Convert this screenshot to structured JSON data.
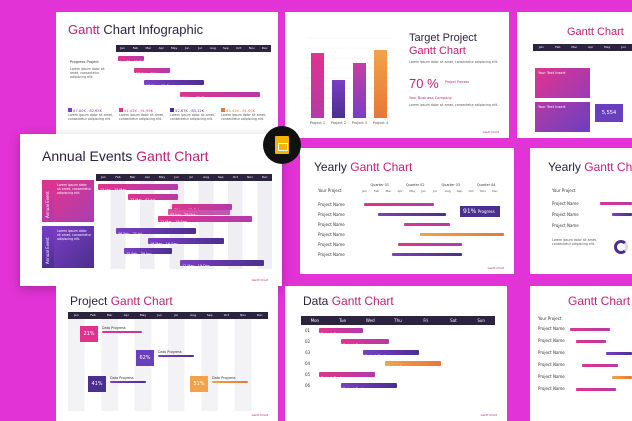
{
  "slides": {
    "s1": {
      "title_a": "Gantt",
      "title_b": " Chart Infographic",
      "progress_label": "Progress Project",
      "bars": [
        "Jan 01 - 15 Feb",
        "28 Feb - 01 Jun",
        "07 Mar - 15 Sep",
        "01 Jun - 31 Dec"
      ],
      "stats": [
        "67.80K - 82,65K",
        "51.43K - 91.99K",
        "52.67K - 83.12K",
        "45.41K - 81.60K"
      ]
    },
    "s2": {
      "title_a": "Target Project",
      "title_b": "Gantt Chart",
      "pct": "70 %",
      "pct_label": "Project Process",
      "company": "Your Business Company",
      "chart_data": {
        "type": "bar",
        "categories": [
          "Project 1",
          "Project 2",
          "Project 3",
          "Project 4"
        ],
        "values": [
          65,
          38,
          55,
          68
        ],
        "ylim": [
          0,
          80
        ]
      }
    },
    "s3": {
      "title_a": "Gantt Chart",
      "box1": "Your Text Insert",
      "box2": "Your Text Insert",
      "value": "5,554"
    },
    "s4": {
      "title_a": "Annual Events ",
      "title_b": "Gantt Chart",
      "side1": "Annual Event",
      "side2": "Annual Event",
      "bars": [
        "12 Jan - 15 May",
        "27 Mar - 01 Jul",
        "09 Jun - 19 Oct",
        "05 Jun - 29 Oct",
        "12 Mar - 15 Sep",
        "06 Feb - 21 Jul",
        "19 May - 16 Sep",
        "25 Feb - 09 Jun",
        "12 May - 19 Dec"
      ]
    },
    "s5": {
      "title_a": "Yearly ",
      "title_b": "Gantt Chart",
      "your_project": "Your Project",
      "quarters": [
        "Quarter 01",
        "Quarter 02",
        "Quarter 03",
        "Quarter 04"
      ],
      "row": "Project Name",
      "progress_value": "91%",
      "progress_label": "Progress"
    },
    "s6": {
      "title_a": "Yearly ",
      "title_b": "Gantt Chart",
      "your_project": "Your Project",
      "row": "Project Name"
    },
    "s7": {
      "title_a": "Project ",
      "title_b": "Gantt Chart",
      "items": [
        {
          "val": "21%",
          "label": "Data Progress"
        },
        {
          "val": "62%",
          "label": "Data Progress"
        },
        {
          "val": "41%",
          "label": "Data Progress"
        },
        {
          "val": "51%",
          "label": "Data Progress"
        }
      ]
    },
    "s8": {
      "title_a": "Data ",
      "title_b": "Gantt Chart",
      "days": [
        "Mon",
        "Tue",
        "Wed",
        "Thu",
        "Fri",
        "Sat",
        "Sun"
      ],
      "rows": [
        "01",
        "02",
        "03",
        "04",
        "05",
        "06"
      ],
      "bar_label": "Project Business"
    },
    "s9": {
      "title_a": "Gantt Chart",
      "your_project": "Your Project",
      "row": "Project Name"
    }
  },
  "months": [
    "Jan",
    "Feb",
    "Mar",
    "Apr",
    "May",
    "Jun",
    "Jul",
    "Aug",
    "Sep",
    "Oct",
    "Nov",
    "Dec"
  ],
  "footer": "Gantt Chart",
  "body_text": "Lorem ipsum dolor sit amet, consectetur adipiscing elit.",
  "app_badge": "Google Slides"
}
